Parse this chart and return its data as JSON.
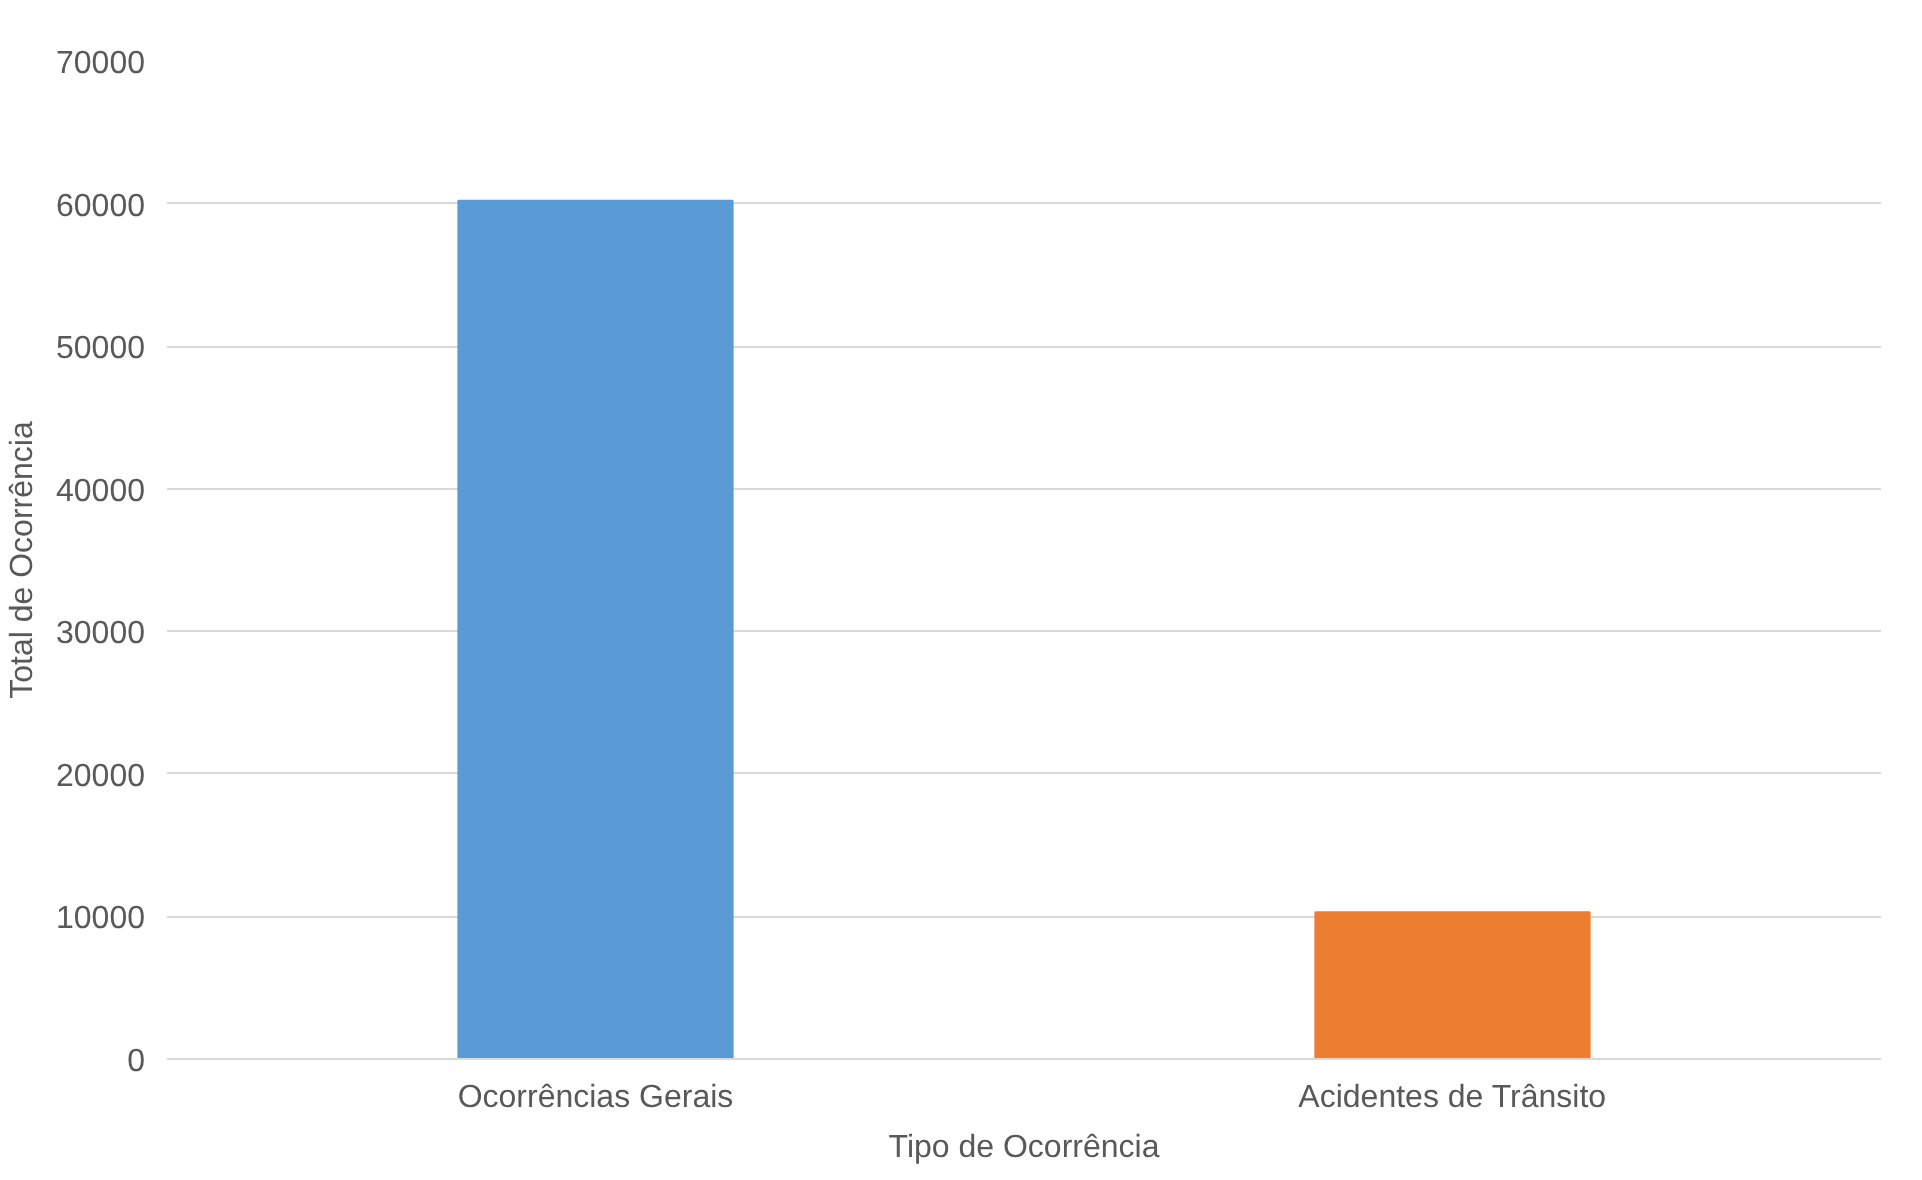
{
  "chart_data": {
    "type": "bar",
    "xlabel": "Tipo de Ocorrência",
    "ylabel": "Total de Ocorrência",
    "categories": [
      "Ocorrências Gerais",
      "Acidentes de Trânsito"
    ],
    "values": [
      60200,
      10300
    ],
    "colors": [
      "#5b9bd5",
      "#ed7d31"
    ],
    "ylim": [
      0,
      70000
    ],
    "yticks": [
      0,
      10000,
      20000,
      30000,
      40000,
      50000,
      60000,
      70000
    ],
    "grid": "y"
  }
}
